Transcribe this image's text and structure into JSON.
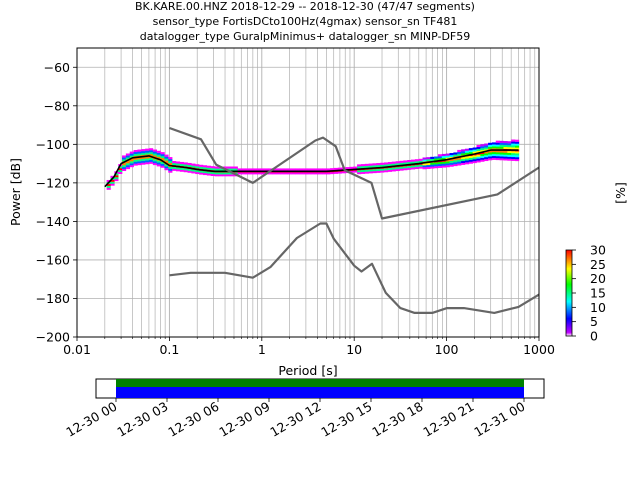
{
  "title_lines": [
    "BK.KARE.00.HNZ   2018-12-29 -- 2018-12-30  (47/47 segments)",
    "sensor_type FortisDCto100Hz(4gmax) sensor_sn TF481",
    "datalogger_type GuralpMinimus+ datalogger_sn MINP-DF59"
  ],
  "colors": {
    "noise_model": "#666666",
    "mean_curve": "#000000",
    "grid": "#b0b0b0",
    "timeline_green": "#008000",
    "timeline_blue": "#0000ff"
  },
  "chart_data": {
    "type": "line",
    "xlabel": "Period [s]",
    "ylabel": "Power [dB]",
    "xscale": "log",
    "xlim": [
      0.01,
      1000
    ],
    "ylim": [
      -200,
      -50
    ],
    "x_ticks": [
      0.01,
      0.1,
      1,
      10,
      100,
      1000
    ],
    "x_tick_labels": [
      "0.01",
      "0.1",
      "1",
      "10",
      "100",
      "1000"
    ],
    "y_ticks": [
      -200,
      -180,
      -160,
      -140,
      -120,
      -100,
      -80,
      -60
    ],
    "y_tick_labels": [
      "−200",
      "−180",
      "−160",
      "−140",
      "−120",
      "−100",
      "−80",
      "−60"
    ],
    "grid": true,
    "series": [
      {
        "role": "mean_psd",
        "x": [
          0.02,
          0.025,
          0.03,
          0.04,
          0.06,
          0.08,
          0.1,
          0.15,
          0.2,
          0.3,
          0.5,
          1,
          2,
          5,
          10,
          20,
          50,
          100,
          200,
          300,
          600
        ],
        "y": [
          -122,
          -117,
          -110,
          -107,
          -106,
          -108,
          -111,
          -112,
          -113,
          -114,
          -114,
          -114,
          -114,
          -114,
          -113,
          -112,
          -110,
          -108,
          -105,
          -103,
          -103
        ]
      },
      {
        "role": "high_noise_model",
        "x": [
          0.1,
          0.22,
          0.32,
          0.8,
          3.8,
          4.6,
          6.3,
          7.9,
          15.4,
          20,
          354.8,
          1000
        ],
        "y": [
          -91.5,
          -97.4,
          -110.5,
          -120,
          -98,
          -96.5,
          -101,
          -113.5,
          -120,
          -138.5,
          -126,
          -112
        ]
      },
      {
        "role": "low_noise_model",
        "x": [
          0.1,
          0.17,
          0.4,
          0.8,
          1.24,
          2.4,
          4.3,
          5,
          6,
          10,
          12,
          15.6,
          21.9,
          31.6,
          45,
          70,
          101,
          154,
          328,
          600,
          1000
        ],
        "y": [
          -168,
          -166.7,
          -166.7,
          -169.2,
          -163.7,
          -148.6,
          -141.1,
          -141.1,
          -149,
          -163,
          -166,
          -162,
          -177,
          -185,
          -187.5,
          -187.5,
          -185,
          -185,
          -187.5,
          -184.4,
          -178
        ]
      }
    ],
    "colorbar": {
      "label": "[%]",
      "range": [
        0,
        30
      ],
      "ticks": [
        0,
        5,
        10,
        15,
        20,
        25,
        30
      ]
    },
    "timeline": {
      "x_ticks": [
        "12-30 00",
        "12-30 03",
        "12-30 06",
        "12-30 09",
        "12-30 12",
        "12-30 15",
        "12-30 18",
        "12-30 21",
        "12-31 00"
      ],
      "coverage_start": "12-30 00",
      "coverage_end": "12-31 00"
    }
  }
}
